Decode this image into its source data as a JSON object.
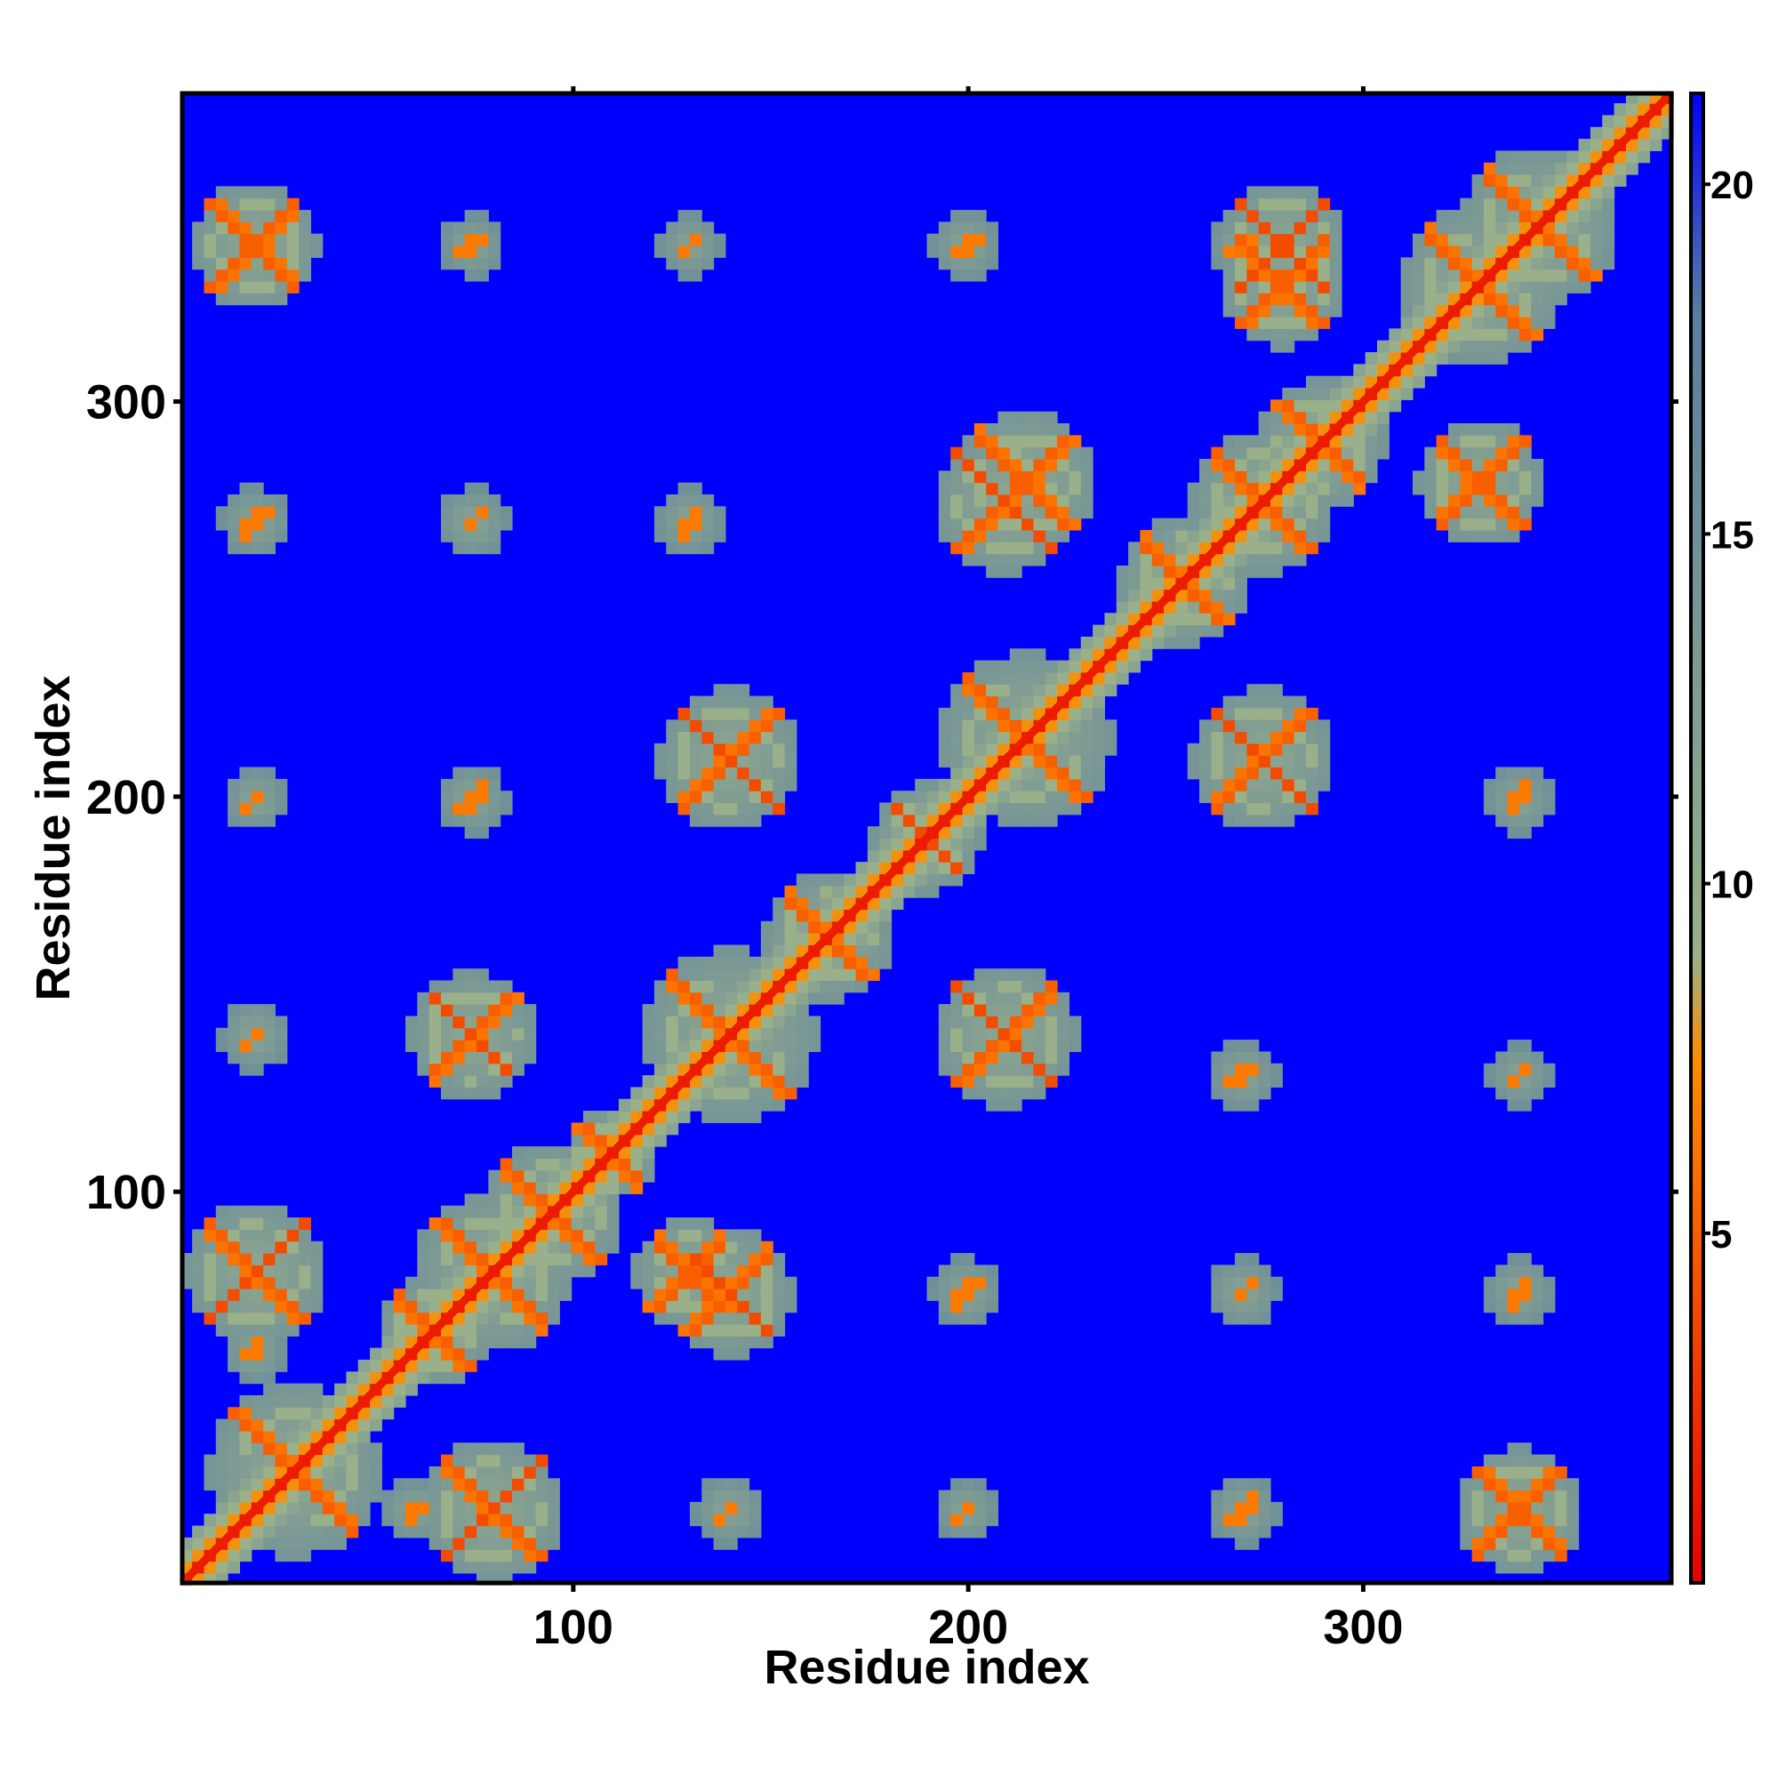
{
  "chart_data": {
    "type": "heatmap",
    "title": "",
    "xlabel": "Residue index",
    "ylabel": "Residue index",
    "xlim": [
      1,
      378
    ],
    "ylim": [
      1,
      378
    ],
    "x_ticks": [
      100,
      200,
      300
    ],
    "y_ticks": [
      100,
      200,
      300
    ],
    "x_tick_labels": [
      "100",
      "200",
      "300"
    ],
    "y_tick_labels": [
      "100",
      "200",
      "300"
    ],
    "grid": false,
    "n_residues": 378,
    "colorbar": {
      "range": [
        0,
        21.3
      ],
      "ticks": [
        5,
        10,
        15,
        20
      ],
      "tick_labels": [
        "5",
        "10",
        "15",
        "20"
      ],
      "colors": [
        "#e60000",
        "#ff8c00",
        "#9ab08a",
        "#5a7fa0",
        "#0000ff"
      ],
      "stops": [
        0,
        0.35,
        0.42,
        0.85,
        1
      ],
      "background_value": 21.3
    },
    "diagonal": {
      "from": 1,
      "to": 378,
      "value": 1.5
    },
    "helix_crossings": [
      {
        "x": 30,
        "y": 30,
        "radius": 22
      },
      {
        "x": 65,
        "y": 65,
        "radius": 14
      },
      {
        "x": 80,
        "y": 80,
        "radius": 20
      },
      {
        "x": 95,
        "y": 95,
        "radius": 18
      },
      {
        "x": 110,
        "y": 110,
        "radius": 12
      },
      {
        "x": 140,
        "y": 140,
        "radius": 22
      },
      {
        "x": 165,
        "y": 165,
        "radius": 16
      },
      {
        "x": 190,
        "y": 190,
        "radius": 14
      },
      {
        "x": 215,
        "y": 215,
        "radius": 22
      },
      {
        "x": 255,
        "y": 255,
        "radius": 16
      },
      {
        "x": 275,
        "y": 275,
        "radius": 18
      },
      {
        "x": 290,
        "y": 290,
        "radius": 16
      },
      {
        "x": 330,
        "y": 330,
        "radius": 20
      },
      {
        "x": 345,
        "y": 345,
        "radius": 20
      },
      {
        "x": 20,
        "y": 340,
        "radius": 16
      },
      {
        "x": 340,
        "y": 20,
        "radius": 16
      },
      {
        "x": 20,
        "y": 80,
        "radius": 18
      },
      {
        "x": 80,
        "y": 20,
        "radius": 18
      },
      {
        "x": 75,
        "y": 140,
        "radius": 16
      },
      {
        "x": 140,
        "y": 75,
        "radius": 16
      },
      {
        "x": 140,
        "y": 210,
        "radius": 18
      },
      {
        "x": 210,
        "y": 140,
        "radius": 18
      },
      {
        "x": 275,
        "y": 210,
        "radius": 18
      },
      {
        "x": 210,
        "y": 275,
        "radius": 18
      },
      {
        "x": 215,
        "y": 280,
        "radius": 18
      },
      {
        "x": 330,
        "y": 280,
        "radius": 16
      },
      {
        "x": 280,
        "y": 330,
        "radius": 16
      },
      {
        "x": 280,
        "y": 340,
        "radius": 16
      },
      {
        "x": 130,
        "y": 80,
        "radius": 14
      }
    ],
    "contact_patches": [
      {
        "x": 20,
        "y": 20,
        "radius": 10
      },
      {
        "x": 20,
        "y": 60,
        "radius": 8
      },
      {
        "x": 20,
        "y": 140,
        "radius": 9
      },
      {
        "x": 20,
        "y": 200,
        "radius": 8
      },
      {
        "x": 20,
        "y": 270,
        "radius": 9
      },
      {
        "x": 60,
        "y": 20,
        "radius": 8
      },
      {
        "x": 140,
        "y": 20,
        "radius": 9
      },
      {
        "x": 200,
        "y": 20,
        "radius": 8
      },
      {
        "x": 270,
        "y": 20,
        "radius": 9
      },
      {
        "x": 75,
        "y": 200,
        "radius": 9
      },
      {
        "x": 75,
        "y": 270,
        "radius": 9
      },
      {
        "x": 75,
        "y": 340,
        "radius": 8
      },
      {
        "x": 130,
        "y": 270,
        "radius": 9
      },
      {
        "x": 130,
        "y": 340,
        "radius": 8
      },
      {
        "x": 200,
        "y": 75,
        "radius": 9
      },
      {
        "x": 270,
        "y": 75,
        "radius": 9
      },
      {
        "x": 340,
        "y": 75,
        "radius": 9
      },
      {
        "x": 200,
        "y": 340,
        "radius": 9
      },
      {
        "x": 270,
        "y": 340,
        "radius": 9
      },
      {
        "x": 270,
        "y": 130,
        "radius": 9
      },
      {
        "x": 340,
        "y": 130,
        "radius": 8
      },
      {
        "x": 340,
        "y": 200,
        "radius": 9
      },
      {
        "x": 200,
        "y": 20,
        "radius": 6
      },
      {
        "x": 270,
        "y": 20,
        "radius": 6
      }
    ]
  }
}
